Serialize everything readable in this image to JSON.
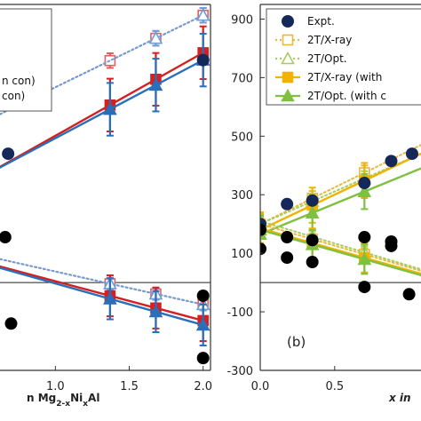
{
  "chart_data": [
    {
      "type": "scatter",
      "panel": "a",
      "xlim": [
        0.625,
        2.05
      ],
      "ylim": [
        -300,
        950
      ],
      "xticks": [
        1.0,
        1.5,
        2.0
      ],
      "x_tick_labels": [
        "1.0",
        "1.5",
        "2.0"
      ],
      "xlabel": "n Mg2-xNixAl",
      "grid": false,
      "legend_entries": [
        "n con)",
        "con)"
      ],
      "series": [
        {
          "values_x": [
            0.625,
            2.0
          ],
          "values_y": [
            575,
            913
          ],
          "color": "#e06060",
          "style": "dotted",
          "marker": "open-square",
          "markers_at": [
            1.37,
            1.68,
            2.0
          ],
          "err": 25
        },
        {
          "values_x": [
            0.625,
            2.0
          ],
          "values_y": [
            575,
            913
          ],
          "color": "#6a9fd8",
          "style": "dotted",
          "marker": "open-triangle",
          "markers_at": [
            1.68,
            2.0
          ],
          "err": 25
        },
        {
          "values_x": [
            0.625,
            2.0
          ],
          "values_y": [
            395,
            785
          ],
          "color": "#d42020",
          "style": "solid",
          "marker": "square",
          "markers_at": [
            1.37,
            1.68,
            2.0
          ],
          "err": 90
        },
        {
          "values_x": [
            0.625,
            2.0
          ],
          "values_y": [
            393,
            760
          ],
          "color": "#2a6fba",
          "style": "solid",
          "marker": "triangle",
          "markers_at": [
            1.37,
            1.68,
            2.0
          ],
          "err": 90
        },
        {
          "values_x": [
            0.625,
            2.0
          ],
          "values_y": [
            80,
            -75
          ],
          "color": "#e06060",
          "style": "dotted",
          "marker": "open-square",
          "markers_at": [
            1.37,
            1.68,
            2.0
          ],
          "err": 20
        },
        {
          "values_x": [
            0.625,
            2.0
          ],
          "values_y": [
            80,
            -75
          ],
          "color": "#6a9fd8",
          "style": "dotted",
          "marker": "open-triangle",
          "markers_at": [
            1.37,
            1.68,
            2.0
          ],
          "err": 20
        },
        {
          "values_x": [
            0.625,
            2.0
          ],
          "values_y": [
            55,
            -130
          ],
          "color": "#d42020",
          "style": "solid",
          "marker": "square",
          "markers_at": [
            1.37,
            1.68,
            2.0
          ],
          "err": 70
        },
        {
          "values_x": [
            0.625,
            2.0
          ],
          "values_y": [
            50,
            -145
          ],
          "color": "#2a6fba",
          "style": "solid",
          "marker": "triangle",
          "markers_at": [
            1.37,
            1.68,
            2.0
          ],
          "err": 70
        }
      ],
      "expt_blue": [
        [
          0.68,
          440
        ],
        [
          2.0,
          760
        ]
      ],
      "expt_black": [
        [
          0.66,
          155
        ],
        [
          0.7,
          -140
        ],
        [
          2.0,
          -45
        ],
        [
          2.0,
          -258
        ]
      ]
    },
    {
      "type": "scatter",
      "panel": "b",
      "annotation": "(b)",
      "xlim": [
        0.0,
        1.08
      ],
      "ylim": [
        -300,
        950
      ],
      "yticks": [
        -300,
        -100,
        100,
        300,
        500,
        700,
        900
      ],
      "y_tick_labels": [
        "-300",
        "-100",
        "100",
        "300",
        "500",
        "700",
        "900"
      ],
      "xticks": [
        0.0,
        0.5
      ],
      "x_tick_labels": [
        "0.0",
        "0.5"
      ],
      "xlabel": "x in",
      "grid": false,
      "legend": {
        "placement": "top-left",
        "entries": [
          {
            "label": "Expt.",
            "marker": "circle",
            "color": "#14285a"
          },
          {
            "label": "2T/X-ray",
            "marker": "open-square",
            "color": "#e8b840",
            "style": "dotted"
          },
          {
            "label": "2T/Opt.",
            "marker": "open-triangle",
            "color": "#a8cc60",
            "style": "dotted"
          },
          {
            "label": "2T/X-ray (with",
            "marker": "square",
            "color": "#f0b400",
            "style": "solid"
          },
          {
            "label": "2T/Opt. (with c",
            "marker": "triangle",
            "color": "#80c040",
            "style": "solid"
          }
        ]
      },
      "series": [
        {
          "values_x": [
            0,
            1.08
          ],
          "values_y": [
            200,
            470
          ],
          "color": "#e8b840",
          "style": "dotted",
          "marker": "open-square",
          "markers_at": [
            0,
            0.35,
            0.7
          ],
          "err": 25
        },
        {
          "values_x": [
            0,
            1.08
          ],
          "values_y": [
            200,
            440
          ],
          "color": "#a8cc60",
          "style": "dotted",
          "marker": "open-triangle",
          "markers_at": [
            0,
            0.35,
            0.7
          ],
          "err": 25
        },
        {
          "values_x": [
            0,
            1.08
          ],
          "values_y": [
            180,
            440
          ],
          "color": "#f0b400",
          "style": "solid",
          "marker": "square",
          "markers_at": [
            0,
            0.35,
            0.7
          ],
          "err": 60
        },
        {
          "values_x": [
            0,
            1.08
          ],
          "values_y": [
            165,
            390
          ],
          "color": "#80c040",
          "style": "solid",
          "marker": "triangle",
          "markers_at": [
            0,
            0.35,
            0.7
          ],
          "err": 60
        },
        {
          "values_x": [
            0,
            1.08
          ],
          "values_y": [
            200,
            40
          ],
          "color": "#e8b840",
          "style": "dotted",
          "marker": "open-square",
          "markers_at": [
            0,
            0.35,
            0.7
          ],
          "err": 20
        },
        {
          "values_x": [
            0,
            1.08
          ],
          "values_y": [
            210,
            45
          ],
          "color": "#a8cc60",
          "style": "dotted",
          "marker": "open-triangle",
          "markers_at": [
            0,
            0.35,
            0.7
          ],
          "err": 20
        },
        {
          "values_x": [
            0,
            1.08
          ],
          "values_y": [
            185,
            30
          ],
          "color": "#f0b400",
          "style": "solid",
          "marker": "square",
          "markers_at": [
            0,
            0.35,
            0.7
          ],
          "err": 50
        },
        {
          "values_x": [
            0,
            1.08
          ],
          "values_y": [
            180,
            25
          ],
          "color": "#80c040",
          "style": "solid",
          "marker": "triangle",
          "markers_at": [
            0,
            0.35,
            0.7
          ],
          "err": 50
        }
      ],
      "expt_blue": [
        [
          0,
          200
        ],
        [
          0.18,
          268
        ],
        [
          0.35,
          280
        ],
        [
          0.7,
          340
        ],
        [
          0.88,
          415
        ],
        [
          1.02,
          440
        ]
      ],
      "expt_black": [
        [
          0,
          115
        ],
        [
          0.18,
          85
        ],
        [
          0.35,
          70
        ],
        [
          0,
          180
        ],
        [
          0.18,
          155
        ],
        [
          0.35,
          145
        ],
        [
          0.7,
          155
        ],
        [
          0.88,
          140
        ],
        [
          0.7,
          -15
        ],
        [
          0.88,
          125
        ],
        [
          1.0,
          -40
        ]
      ]
    }
  ]
}
